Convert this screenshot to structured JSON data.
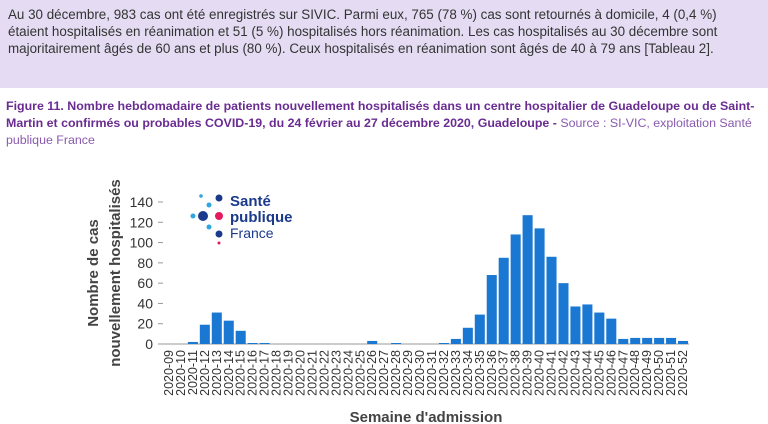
{
  "intro": "Au 30 décembre, 983 cas ont été enregistrés sur SIVIC. Parmi eux, 765 (78 %) cas sont retournés à domicile, 4 (0,4 %) étaient hospitalisés en réanimation et 51 (5 %) hospitalisés hors réanimation. Les cas hospitalisés au 30 décembre sont majoritairement âgés de 60 ans et plus (80 %). Ceux hospitalisés en réanimation sont âgés de 40 à 79 ans [Tableau 2].",
  "caption": {
    "title": "Figure 11. Nombre hebdomadaire de patients nouvellement hospitalisés dans un centre hospitalier de Guadeloupe ou de Saint-Martin et confirmés ou probables COVID-19, du 24 février au 27 décembre 2020, Guadeloupe - ",
    "source": "Source : SI-VIC, exploitation Santé publique France"
  },
  "logo": [
    "Santé",
    "publique",
    "France"
  ],
  "chart_data": {
    "type": "bar",
    "y_label": [
      "Nombre de cas",
      "nouvellement hospitalisés"
    ],
    "x_label": "Semaine d'admission",
    "categories": [
      "2020-09",
      "2020-10",
      "2020-11",
      "2020-12",
      "2020-13",
      "2020-14",
      "2020-15",
      "2020-16",
      "2020-17",
      "2020-18",
      "2020-19",
      "2020-20",
      "2020-21",
      "2020-22",
      "2020-23",
      "2020-24",
      "2020-25",
      "2020-26",
      "2020-27",
      "2020-28",
      "2020-29",
      "2020-30",
      "2020-31",
      "2020-32",
      "2020-33",
      "2020-34",
      "2020-35",
      "2020-36",
      "2020-37",
      "2020-38",
      "2020-39",
      "2020-40",
      "2020-41",
      "2020-42",
      "2020-43",
      "2020-44",
      "2020-45",
      "2020-46",
      "2020-47",
      "2020-48",
      "2020-49",
      "2020-50",
      "2020-51",
      "2020-52"
    ],
    "values": [
      0,
      0,
      2,
      19,
      31,
      23,
      13,
      1,
      1,
      0,
      0,
      0,
      0,
      0,
      0,
      0,
      0,
      3,
      0,
      1,
      0,
      0,
      0,
      1,
      5,
      16,
      29,
      68,
      85,
      108,
      127,
      114,
      86,
      60,
      37,
      39,
      31,
      25,
      5,
      6,
      6,
      6,
      6,
      3
    ],
    "color": "#1a78d2",
    "ylim": [
      0,
      140
    ],
    "yticks": [
      0,
      20,
      40,
      60,
      80,
      100,
      120,
      140
    ],
    "grid": false
  }
}
